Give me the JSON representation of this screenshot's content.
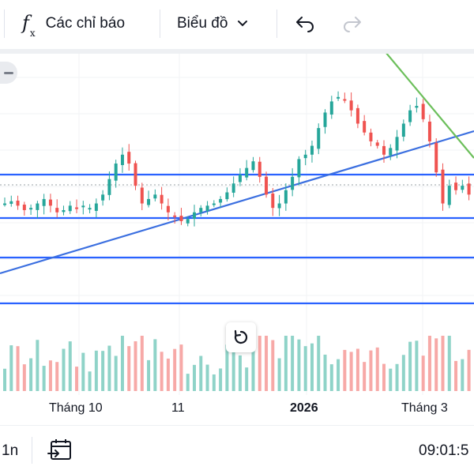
{
  "toolbar": {
    "indicators_label": "Các chỉ báo",
    "indicators_icon": "function-fx-icon",
    "chart_type_label": "Biểu đồ",
    "undo_icon": "undo-icon",
    "redo_icon": "redo-icon"
  },
  "colors": {
    "up": "#26a69a",
    "down": "#ef5350",
    "vol_up": "#8fd3c8",
    "vol_down": "#f7a9a7",
    "hline": "#2962ff",
    "trend_blue": "#3b6fe0",
    "trend_green": "#6cbf5b"
  },
  "time_axis": {
    "labels": [
      {
        "text": "Tháng 10",
        "bold": false
      },
      {
        "text": "11",
        "bold": false
      },
      {
        "text": "2026",
        "bold": true
      },
      {
        "text": "Tháng 3",
        "bold": false
      }
    ]
  },
  "bottom": {
    "interval": "1n",
    "calendar_icon": "goto-date-icon",
    "clock": "09:01:5"
  },
  "chart_data": {
    "type": "candlestick",
    "note_closes": [
      0.44,
      0.45,
      0.43,
      0.41,
      0.42,
      0.44,
      0.46,
      0.43,
      0.4,
      0.41,
      0.43,
      0.42,
      0.43,
      0.42,
      0.44,
      0.48,
      0.55,
      0.62,
      0.66,
      0.62,
      0.52,
      0.44,
      0.46,
      0.48,
      0.44,
      0.4,
      0.38,
      0.36,
      0.37,
      0.4,
      0.42,
      0.43,
      0.44,
      0.46,
      0.49,
      0.53,
      0.57,
      0.6,
      0.63,
      0.56,
      0.48,
      0.42,
      0.44,
      0.5,
      0.56,
      0.64,
      0.66,
      0.7,
      0.78,
      0.85,
      0.9,
      0.92,
      0.91,
      0.86,
      0.8,
      0.76,
      0.72,
      0.7,
      0.66,
      0.69,
      0.74,
      0.8,
      0.86,
      0.88,
      0.82,
      0.72,
      0.58,
      0.44,
      0.52,
      0.5,
      0.52,
      0.48
    ]
  }
}
